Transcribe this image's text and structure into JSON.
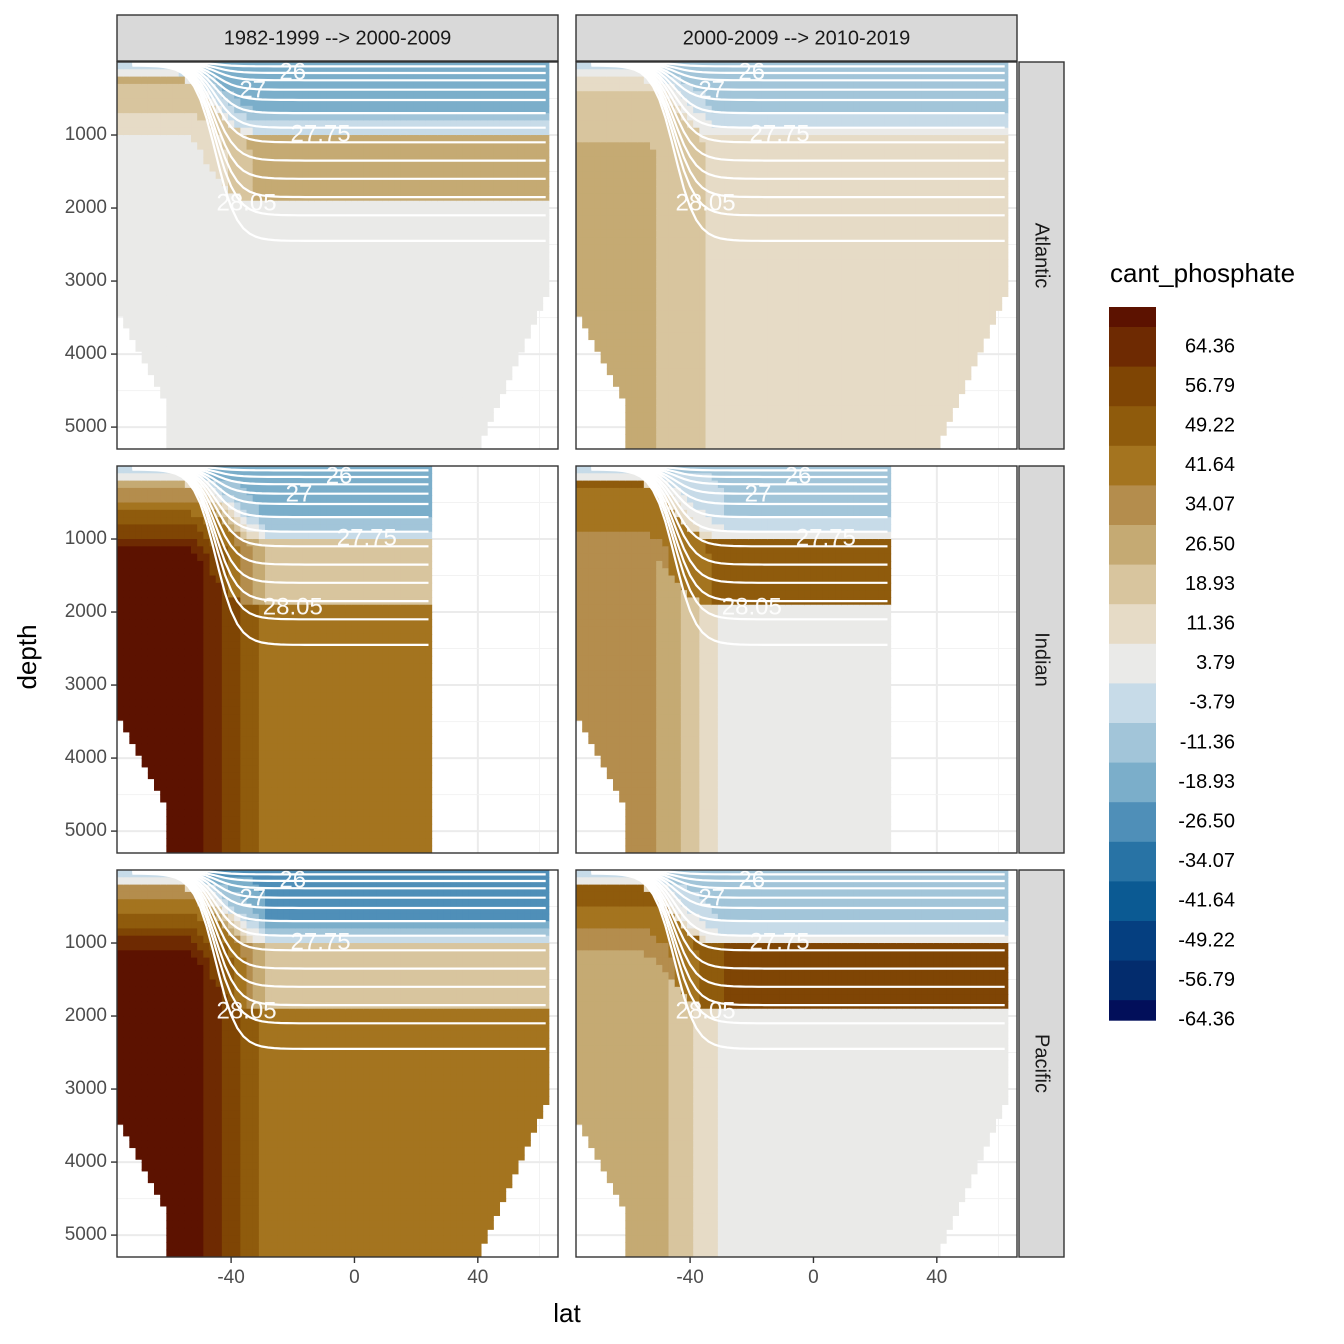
{
  "chart_data": {
    "type": "heatmap",
    "title": "",
    "xlabel": "lat",
    "ylabel": "depth",
    "x_ticks": [
      -40,
      0,
      40
    ],
    "y_ticks": [
      1000,
      2000,
      3000,
      4000,
      5000
    ],
    "xlim": [
      -77,
      66
    ],
    "ylim": [
      5300,
      0
    ],
    "column_strips": [
      "1982-1999 --> 2000-2009",
      "2000-2009 --> 2010-2019"
    ],
    "row_strips": [
      "Atlantic",
      "Indian",
      "Pacific"
    ],
    "isopycnal_labels": [
      "26",
      "27",
      "27.75",
      "28.05"
    ],
    "legend": {
      "title": "cant_phosphate",
      "labels": [
        "64.36",
        "56.79",
        "49.22",
        "41.64",
        "34.07",
        "26.50",
        "18.93",
        "11.36",
        "3.79",
        "-3.79",
        "-11.36",
        "-18.93",
        "-26.50",
        "-34.07",
        "-41.64",
        "-49.22",
        "-56.79",
        "-64.36"
      ],
      "colors": [
        "#5c1200",
        "#6e2a02",
        "#7f4504",
        "#8f5b0c",
        "#a4741f",
        "#b48d4d",
        "#c5aa73",
        "#d8c59e",
        "#e6dbc6",
        "#eaeae8",
        "#c7dbe8",
        "#a2c5d9",
        "#7baeca",
        "#4f8fb8",
        "#2873a5",
        "#0b5a93",
        "#053f80",
        "#032c6d",
        "#020f5a"
      ]
    },
    "panels": [
      {
        "basin": "Atlantic",
        "period": "1982-1999 --> 2000-2009",
        "deep_value": -1,
        "max_lat": 62,
        "surface_value": -22,
        "intermediate_value": 25,
        "south_value": -1
      },
      {
        "basin": "Atlantic",
        "period": "2000-2009 --> 2010-2019",
        "deep_value": 8,
        "max_lat": 62,
        "surface_value": -15,
        "intermediate_value": 8,
        "south_value": 20
      },
      {
        "basin": "Indian",
        "period": "1982-1999 --> 2000-2009",
        "deep_value": 38,
        "max_lat": 24,
        "surface_value": -25,
        "intermediate_value": 15,
        "south_value": 70
      },
      {
        "basin": "Indian",
        "period": "2000-2009 --> 2010-2019",
        "deep_value": 0,
        "max_lat": 24,
        "surface_value": -12,
        "intermediate_value": 45,
        "south_value": 30
      },
      {
        "basin": "Pacific",
        "period": "1982-1999 --> 2000-2009",
        "deep_value": 38,
        "max_lat": 62,
        "surface_value": -28,
        "intermediate_value": 18,
        "south_value": 70
      },
      {
        "basin": "Pacific",
        "period": "2000-2009 --> 2010-2019",
        "deep_value": 0,
        "max_lat": 62,
        "surface_value": -15,
        "intermediate_value": 50,
        "south_value": 26
      }
    ]
  }
}
